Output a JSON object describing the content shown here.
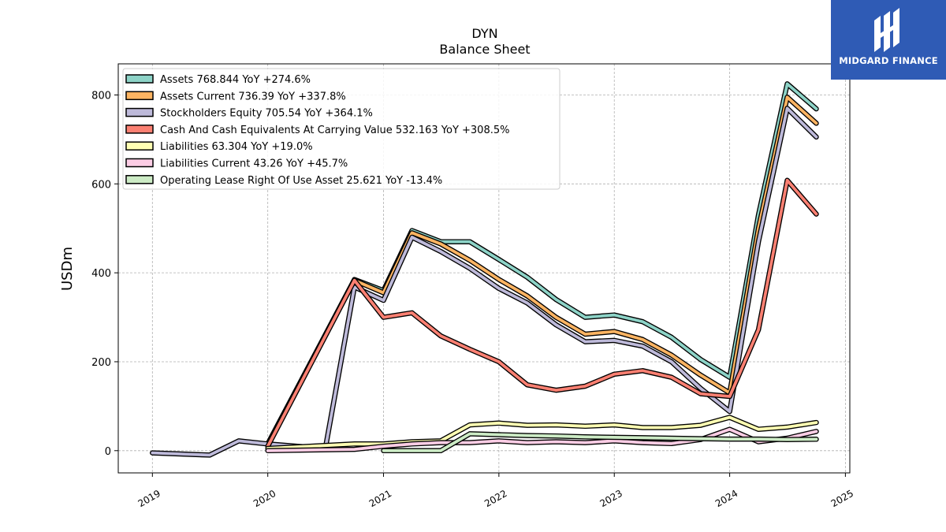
{
  "chart_data": {
    "type": "line",
    "title": "DYN",
    "subtitle": "Balance  Sheet",
    "xlabel": "",
    "ylabel": "USDm",
    "xlim": [
      "2018-09-15",
      "2025-01-15"
    ],
    "ylim": [
      -50,
      870
    ],
    "yticks": [
      0,
      200,
      400,
      600,
      800
    ],
    "xticks": [
      "2019",
      "2020",
      "2021",
      "2022",
      "2023",
      "2024",
      "2025"
    ],
    "grid": true,
    "legend_position": "top-left",
    "series": [
      {
        "name": "Assets",
        "legend": "Assets  768.844 YoY +274.6%",
        "color": "#8dd3c7",
        "points": [
          [
            "2020-01-01",
            15
          ],
          [
            "2020-10-01",
            385
          ],
          [
            "2021-01-01",
            360
          ],
          [
            "2021-04-01",
            495
          ],
          [
            "2021-07-01",
            470
          ],
          [
            "2021-10-01",
            470
          ],
          [
            "2022-01-01",
            430
          ],
          [
            "2022-04-01",
            390
          ],
          [
            "2022-07-01",
            340
          ],
          [
            "2022-10-01",
            300
          ],
          [
            "2023-01-01",
            305
          ],
          [
            "2023-04-01",
            290
          ],
          [
            "2023-07-01",
            255
          ],
          [
            "2023-10-01",
            205
          ],
          [
            "2024-01-01",
            165
          ],
          [
            "2024-04-01",
            530
          ],
          [
            "2024-07-01",
            825
          ],
          [
            "2024-10-01",
            768.844
          ]
        ]
      },
      {
        "name": "Assets Current",
        "legend": "Assets Current  736.39 YoY +337.8%",
        "color": "#fdb462",
        "points": [
          [
            "2020-01-01",
            15
          ],
          [
            "2020-10-01",
            383
          ],
          [
            "2021-01-01",
            355
          ],
          [
            "2021-04-01",
            490
          ],
          [
            "2021-07-01",
            465
          ],
          [
            "2021-10-01",
            428
          ],
          [
            "2022-01-01",
            385
          ],
          [
            "2022-04-01",
            348
          ],
          [
            "2022-07-01",
            300
          ],
          [
            "2022-10-01",
            262
          ],
          [
            "2023-01-01",
            268
          ],
          [
            "2023-04-01",
            250
          ],
          [
            "2023-07-01",
            215
          ],
          [
            "2023-10-01",
            170
          ],
          [
            "2024-01-01",
            130
          ],
          [
            "2024-04-01",
            500
          ],
          [
            "2024-07-01",
            795
          ],
          [
            "2024-10-01",
            736.39
          ]
        ]
      },
      {
        "name": "Stockholders Equity",
        "legend": "Stockholders Equity  705.54 YoY +364.1%",
        "color": "#bebada",
        "points": [
          [
            "2019-01-01",
            -5
          ],
          [
            "2019-07-01",
            -10
          ],
          [
            "2019-10-01",
            22
          ],
          [
            "2020-01-01",
            15
          ],
          [
            "2020-07-01",
            5
          ],
          [
            "2020-10-01",
            368
          ],
          [
            "2021-01-01",
            338
          ],
          [
            "2021-04-01",
            480
          ],
          [
            "2021-07-01",
            448
          ],
          [
            "2021-10-01",
            410
          ],
          [
            "2022-01-01",
            365
          ],
          [
            "2022-04-01",
            332
          ],
          [
            "2022-07-01",
            283
          ],
          [
            "2022-10-01",
            245
          ],
          [
            "2023-01-01",
            248
          ],
          [
            "2023-04-01",
            235
          ],
          [
            "2023-07-01",
            200
          ],
          [
            "2023-10-01",
            140
          ],
          [
            "2024-01-01",
            88
          ],
          [
            "2024-04-01",
            470
          ],
          [
            "2024-07-01",
            770
          ],
          [
            "2024-10-01",
            705.54
          ]
        ]
      },
      {
        "name": "Cash And Cash Equivalents At Carrying Value",
        "legend": "Cash And Cash Equivalents At Carrying Value  532.163 YoY +308.5%",
        "color": "#fb8072",
        "points": [
          [
            "2020-01-01",
            10
          ],
          [
            "2020-10-01",
            383
          ],
          [
            "2021-01-01",
            300
          ],
          [
            "2021-04-01",
            310
          ],
          [
            "2021-07-01",
            258
          ],
          [
            "2021-10-01",
            228
          ],
          [
            "2022-01-01",
            200
          ],
          [
            "2022-04-01",
            148
          ],
          [
            "2022-07-01",
            136
          ],
          [
            "2022-10-01",
            145
          ],
          [
            "2023-01-01",
            172
          ],
          [
            "2023-04-01",
            180
          ],
          [
            "2023-07-01",
            165
          ],
          [
            "2023-10-01",
            128
          ],
          [
            "2024-01-01",
            122
          ],
          [
            "2024-04-01",
            272
          ],
          [
            "2024-07-01",
            608
          ],
          [
            "2024-10-01",
            532.163
          ]
        ]
      },
      {
        "name": "Liabilities",
        "legend": "Liabilities  63.304 YoY +19.0%",
        "color": "#ffffb3",
        "points": [
          [
            "2020-01-01",
            5
          ],
          [
            "2020-10-01",
            15
          ],
          [
            "2021-01-01",
            15
          ],
          [
            "2021-04-01",
            20
          ],
          [
            "2021-07-01",
            22
          ],
          [
            "2021-10-01",
            58
          ],
          [
            "2022-01-01",
            62
          ],
          [
            "2022-04-01",
            57
          ],
          [
            "2022-07-01",
            58
          ],
          [
            "2022-10-01",
            55
          ],
          [
            "2023-01-01",
            58
          ],
          [
            "2023-04-01",
            52
          ],
          [
            "2023-07-01",
            52
          ],
          [
            "2023-10-01",
            57
          ],
          [
            "2024-01-01",
            75
          ],
          [
            "2024-04-01",
            48
          ],
          [
            "2024-07-01",
            53
          ],
          [
            "2024-10-01",
            63.304
          ]
        ]
      },
      {
        "name": "Liabilities Current",
        "legend": "Liabilities Current  43.26 YoY +45.7%",
        "color": "#fccde5",
        "points": [
          [
            "2020-01-01",
            0
          ],
          [
            "2020-10-01",
            3
          ],
          [
            "2021-01-01",
            10
          ],
          [
            "2021-04-01",
            15
          ],
          [
            "2021-07-01",
            18
          ],
          [
            "2021-10-01",
            18
          ],
          [
            "2022-01-01",
            22
          ],
          [
            "2022-04-01",
            18
          ],
          [
            "2022-07-01",
            20
          ],
          [
            "2022-10-01",
            18
          ],
          [
            "2023-01-01",
            22
          ],
          [
            "2023-04-01",
            18
          ],
          [
            "2023-07-01",
            16
          ],
          [
            "2023-10-01",
            25
          ],
          [
            "2024-01-01",
            48
          ],
          [
            "2024-04-01",
            20
          ],
          [
            "2024-07-01",
            28
          ],
          [
            "2024-10-01",
            43.26
          ]
        ]
      },
      {
        "name": "Operating Lease Right Of Use Asset",
        "legend": "Operating Lease Right Of Use Asset  25.621 YoY -13.4%",
        "color": "#ccebc5",
        "points": [
          [
            "2021-01-01",
            0
          ],
          [
            "2021-07-01",
            0
          ],
          [
            "2021-10-01",
            38
          ],
          [
            "2022-01-01",
            36
          ],
          [
            "2022-04-01",
            34
          ],
          [
            "2022-07-01",
            33
          ],
          [
            "2022-10-01",
            31
          ],
          [
            "2023-01-01",
            30
          ],
          [
            "2023-04-01",
            29
          ],
          [
            "2023-07-01",
            28
          ],
          [
            "2023-10-01",
            27
          ],
          [
            "2024-01-01",
            26
          ],
          [
            "2024-04-01",
            26
          ],
          [
            "2024-07-01",
            25
          ],
          [
            "2024-10-01",
            25.621
          ]
        ]
      }
    ]
  },
  "logo": {
    "text": "MIDGARD FINANCE"
  }
}
